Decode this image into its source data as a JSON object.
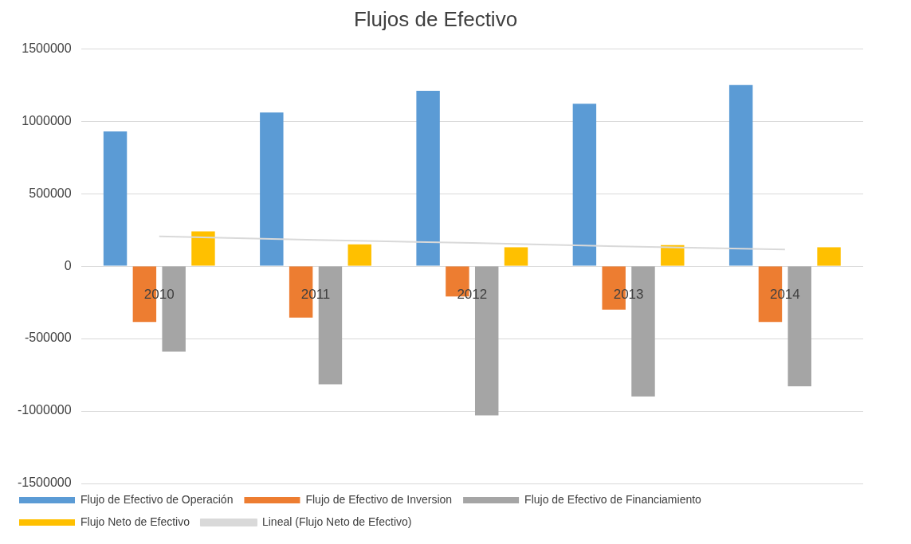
{
  "chart_data": {
    "type": "bar",
    "title": "Flujos de Efectivo",
    "categories": [
      "2010",
      "2011",
      "2012",
      "2013",
      "2014"
    ],
    "series": [
      {
        "name": "Flujo de Efectivo de Operación",
        "color": "#5b9bd5",
        "values": [
          930000,
          1060000,
          1210000,
          1120000,
          1250000
        ]
      },
      {
        "name": "Flujo de Efectivo de Inversion",
        "color": "#ed7d31",
        "values": [
          -385000,
          -355000,
          -210000,
          -300000,
          -385000
        ]
      },
      {
        "name": "Flujo de Efectivo de Financiamiento",
        "color": "#a5a5a5",
        "values": [
          -590000,
          -815000,
          -1030000,
          -900000,
          -830000
        ]
      },
      {
        "name": "Flujo Neto de Efectivo",
        "color": "#ffc000",
        "values": [
          240000,
          150000,
          130000,
          145000,
          130000
        ]
      },
      {
        "name": "Lineal (Flujo Neto de Efectivo)",
        "type": "line",
        "color": "#d9d9d9",
        "values": [
          205000,
          180000,
          160000,
          135000,
          115000
        ]
      }
    ],
    "ylim": [
      -1500000,
      1500000
    ],
    "yticks": [
      -1500000,
      -1000000,
      -500000,
      0,
      500000,
      1000000,
      1500000
    ],
    "grid": "y",
    "legend": "bottom",
    "marker": "none"
  }
}
